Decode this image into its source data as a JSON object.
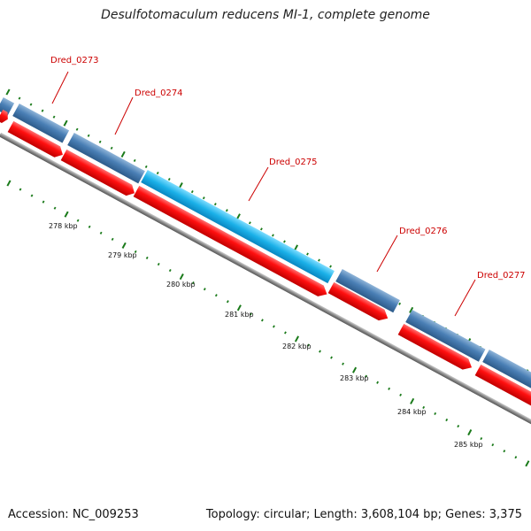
{
  "title": "Desulfotomaculum reducens MI-1, complete genome",
  "footer": {
    "accession": "Accession: NC_009253",
    "summary": "Topology: circular; Length: 3,608,104 bp; Genes: 3,375"
  },
  "colors": {
    "gene_forward": "#4a7fb5",
    "gene_highlight": "#1ab0e8",
    "gene_reverse": "#ff1010",
    "backbone": "#888888",
    "ticks": "#1a7a1a",
    "labels": "#cc0000"
  },
  "gene_labels": [
    "Dred_0273",
    "Dred_0274",
    "Dred_0275",
    "Dred_0276",
    "Dred_0277"
  ],
  "scale_labels": [
    "278 kbp",
    "279 kbp",
    "280 kbp",
    "281 kbp",
    "282 kbp",
    "283 kbp",
    "284 kbp",
    "285 kbp"
  ]
}
